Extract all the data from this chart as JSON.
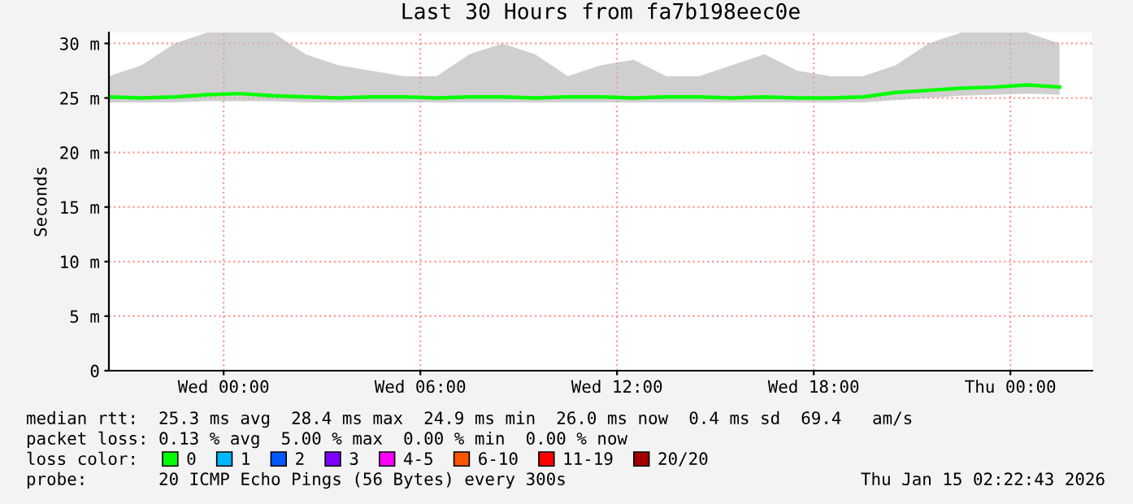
{
  "chart_data": {
    "type": "line",
    "title": "Last 30 Hours from fa7b198eec0e",
    "ylabel": "Seconds",
    "x": [
      "2026-01-13T20:30",
      "2026-01-13T21:30",
      "2026-01-13T22:30",
      "2026-01-13T23:30",
      "2026-01-14T00:30",
      "2026-01-14T01:30",
      "2026-01-14T02:30",
      "2026-01-14T03:30",
      "2026-01-14T04:30",
      "2026-01-14T05:30",
      "2026-01-14T06:30",
      "2026-01-14T07:30",
      "2026-01-14T08:30",
      "2026-01-14T09:30",
      "2026-01-14T10:30",
      "2026-01-14T11:30",
      "2026-01-14T12:30",
      "2026-01-14T13:30",
      "2026-01-14T14:30",
      "2026-01-14T15:30",
      "2026-01-14T16:30",
      "2026-01-14T17:30",
      "2026-01-14T18:30",
      "2026-01-14T19:30",
      "2026-01-14T20:30",
      "2026-01-14T21:30",
      "2026-01-14T22:30",
      "2026-01-14T23:30",
      "2026-01-15T00:30",
      "2026-01-15T01:30"
    ],
    "series": [
      {
        "name": "0",
        "color": "#00ff00",
        "values": [
          25.1,
          25.0,
          25.1,
          25.3,
          25.4,
          25.2,
          25.1,
          25.0,
          25.1,
          25.1,
          25.0,
          25.1,
          25.1,
          25.0,
          25.1,
          25.1,
          25.0,
          25.1,
          25.1,
          25.0,
          25.1,
          25.0,
          25.0,
          25.1,
          25.5,
          25.7,
          25.9,
          26.0,
          26.2,
          26.0
        ],
        "lower": [
          24.6,
          24.6,
          24.6,
          24.7,
          24.7,
          24.7,
          24.6,
          24.6,
          24.6,
          24.6,
          24.6,
          24.6,
          24.6,
          24.6,
          24.6,
          24.6,
          24.6,
          24.6,
          24.6,
          24.6,
          24.6,
          24.6,
          24.6,
          24.6,
          24.8,
          25.0,
          25.2,
          25.3,
          25.4,
          25.3
        ],
        "upper": [
          27,
          28,
          30,
          31,
          31,
          31,
          29,
          28,
          27.5,
          27,
          27,
          29,
          30,
          29,
          27,
          28,
          28.5,
          27,
          27,
          28,
          29,
          27.5,
          27,
          27,
          28,
          30,
          31,
          31,
          31,
          30
        ]
      },
      {
        "name": "1",
        "color": "#00b8ff",
        "values": [
          null,
          null,
          null,
          null,
          null,
          null,
          null,
          null,
          null,
          null,
          null,
          null,
          null,
          null,
          null,
          null,
          null,
          null,
          null,
          null,
          null,
          null,
          null,
          null,
          null,
          null,
          null,
          null,
          null,
          null
        ]
      },
      {
        "name": "2",
        "color": "#0059ff",
        "values": [
          null,
          null,
          null,
          null,
          null,
          null,
          null,
          null,
          null,
          null,
          null,
          null,
          null,
          null,
          null,
          null,
          null,
          null,
          null,
          null,
          null,
          null,
          null,
          null,
          null,
          null,
          null,
          null,
          null,
          null
        ]
      },
      {
        "name": "3",
        "color": "#7e00ff",
        "values": [
          null,
          null,
          null,
          null,
          null,
          null,
          null,
          null,
          null,
          null,
          null,
          null,
          null,
          null,
          null,
          null,
          null,
          null,
          null,
          null,
          null,
          null,
          null,
          null,
          null,
          null,
          null,
          null,
          null,
          null
        ]
      },
      {
        "name": "4-5",
        "color": "#ff00ff",
        "values": [
          null,
          null,
          null,
          null,
          null,
          null,
          null,
          null,
          null,
          null,
          null,
          null,
          null,
          null,
          null,
          null,
          null,
          null,
          null,
          null,
          null,
          null,
          null,
          null,
          null,
          null,
          null,
          null,
          null,
          null
        ]
      },
      {
        "name": "6-10",
        "color": "#ff5500",
        "values": [
          null,
          null,
          null,
          null,
          null,
          null,
          null,
          null,
          null,
          null,
          null,
          null,
          null,
          null,
          null,
          null,
          null,
          null,
          null,
          null,
          null,
          null,
          null,
          null,
          null,
          null,
          null,
          null,
          null,
          null
        ]
      },
      {
        "name": "11-19",
        "color": "#ff0000",
        "values": [
          null,
          null,
          null,
          null,
          null,
          null,
          null,
          null,
          null,
          null,
          null,
          null,
          null,
          null,
          null,
          null,
          null,
          null,
          null,
          null,
          null,
          null,
          null,
          null,
          null,
          null,
          null,
          null,
          null,
          null
        ]
      },
      {
        "name": "20/20",
        "color": "#a10000",
        "values": [
          null,
          null,
          null,
          null,
          null,
          null,
          null,
          null,
          null,
          null,
          null,
          null,
          null,
          null,
          null,
          null,
          null,
          null,
          null,
          null,
          null,
          null,
          null,
          null,
          null,
          null,
          null,
          null,
          null,
          null
        ]
      }
    ],
    "xlim": [
      "2026-01-13T20:30",
      "2026-01-15T02:30"
    ],
    "xticks": [
      {
        "value": "2026-01-14T00:00",
        "label": "Wed 00:00"
      },
      {
        "value": "2026-01-14T06:00",
        "label": "Wed 06:00"
      },
      {
        "value": "2026-01-14T12:00",
        "label": "Wed 12:00"
      },
      {
        "value": "2026-01-14T18:00",
        "label": "Wed 18:00"
      },
      {
        "value": "2026-01-15T00:00",
        "label": "Thu 00:00"
      }
    ],
    "ylim": [
      0,
      31
    ],
    "yticks": [
      {
        "value": 0,
        "label": "0"
      },
      {
        "value": 5,
        "label": "5 m"
      },
      {
        "value": 10,
        "label": "10 m"
      },
      {
        "value": 15,
        "label": "15 m"
      },
      {
        "value": 20,
        "label": "20 m"
      },
      {
        "value": 25,
        "label": "25 m"
      },
      {
        "value": 30,
        "label": "30 m"
      }
    ],
    "grid": true,
    "legend": "bottom",
    "legend_title": "loss color:",
    "annotations": [
      "median rtt:  25.3 ms avg  28.4 ms max  24.9 ms min  26.0 ms now  0.4 ms sd  69.4   am/s",
      "packet loss: 0.13 % avg  5.00 % max  0.00 % min  0.00 % now",
      "probe:       20 ICMP Echo Pings (56 Bytes) every 300s",
      "Thu Jan 15 02:22:43 2026"
    ]
  }
}
